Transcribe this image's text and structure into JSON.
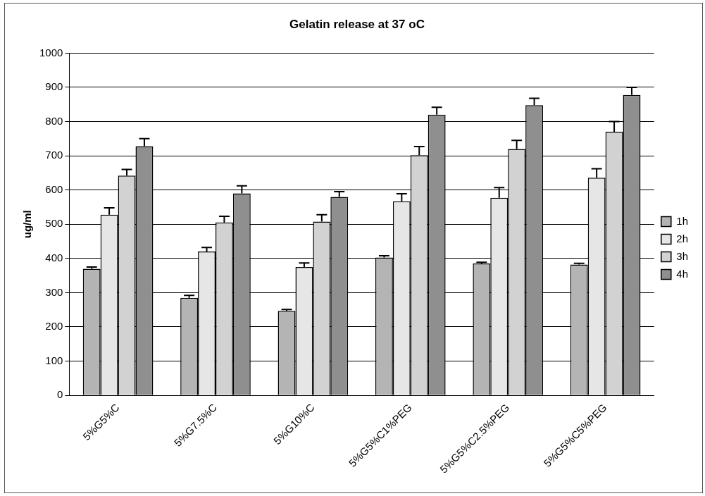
{
  "chart_data": {
    "type": "bar",
    "title": "Gelatin release at 37 oC",
    "ylabel": "ug/ml",
    "categories": [
      "5%G5%C",
      "5%G7.5%C",
      "5%G10%C",
      "5%G5%C1%PEG",
      "5%G5%C2.5%PEG",
      "5%G5%C5%PEG"
    ],
    "series": [
      {
        "name": "1h",
        "color": "#b4b4b4",
        "values": [
          370,
          285,
          247,
          403,
          385,
          382
        ],
        "errors": [
          [
            370,
            375
          ],
          [
            285,
            292
          ],
          [
            247,
            251
          ],
          [
            403,
            408
          ],
          [
            385,
            389
          ],
          [
            382,
            386
          ]
        ]
      },
      {
        "name": "2h",
        "color": "#e6e6e6",
        "values": [
          528,
          420,
          375,
          567,
          577,
          636
        ],
        "errors": [
          [
            528,
            548
          ],
          [
            420,
            432
          ],
          [
            375,
            387
          ],
          [
            567,
            589
          ],
          [
            577,
            607
          ],
          [
            636,
            662
          ]
        ]
      },
      {
        "name": "3h",
        "color": "#d2d2d2",
        "values": [
          642,
          505,
          508,
          702,
          720,
          770
        ],
        "errors": [
          [
            642,
            660
          ],
          [
            505,
            523
          ],
          [
            508,
            528
          ],
          [
            702,
            727
          ],
          [
            720,
            745
          ],
          [
            770,
            800
          ]
        ]
      },
      {
        "name": "4h",
        "color": "#8f8f8f",
        "values": [
          728,
          590,
          580,
          820,
          848,
          878
        ],
        "errors": [
          [
            728,
            750
          ],
          [
            590,
            612
          ],
          [
            580,
            595
          ],
          [
            820,
            842
          ],
          [
            848,
            868
          ],
          [
            878,
            900
          ]
        ]
      }
    ],
    "ylim": [
      0,
      1000
    ],
    "yticks": [
      0,
      100,
      200,
      300,
      400,
      500,
      600,
      700,
      800,
      900,
      1000
    ],
    "grid": "y",
    "legend": "right"
  }
}
